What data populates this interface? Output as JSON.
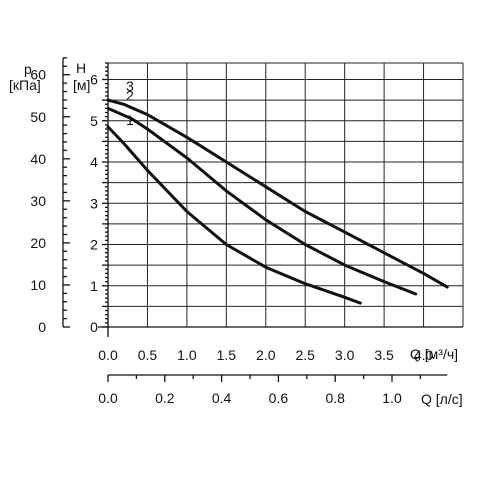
{
  "chart_data": {
    "type": "line",
    "title": "",
    "colors": {
      "curves": "#111111",
      "grid": "#222222",
      "background": "#ffffff"
    },
    "grid": true,
    "axes": {
      "x_flow_m3h": {
        "label": "Q [м³/ч]",
        "range": [
          0,
          4.5
        ],
        "ticks": [
          "0.0",
          "0.5",
          "1.0",
          "1.5",
          "2.0",
          "2.5",
          "3.0",
          "3.5",
          "4.0"
        ]
      },
      "x_flow_ls": {
        "label": "Q [л/с]",
        "ticks": [
          "0.0",
          "0.2",
          "0.4",
          "0.6",
          "0.8",
          "1.0"
        ]
      },
      "y_head_m": {
        "label_top": "H",
        "label_unit": "[м]",
        "range": [
          0,
          6.4
        ],
        "ticks": [
          "0",
          "1",
          "2",
          "3",
          "4",
          "5",
          "6"
        ]
      },
      "y_pressure_kpa": {
        "label_top": "p",
        "label_unit": "[кПа]",
        "ticks": [
          "0",
          "10",
          "20",
          "30",
          "40",
          "50",
          "60"
        ]
      }
    },
    "series": [
      {
        "name": "1",
        "x": [
          0.0,
          0.2,
          0.5,
          1.0,
          1.5,
          2.0,
          2.5,
          3.0,
          3.2
        ],
        "y": [
          4.85,
          4.45,
          3.8,
          2.8,
          2.0,
          1.45,
          1.05,
          0.72,
          0.58
        ]
      },
      {
        "name": "2",
        "x": [
          0.0,
          0.3,
          0.5,
          1.0,
          1.5,
          2.0,
          2.5,
          3.0,
          3.5,
          3.9
        ],
        "y": [
          5.3,
          5.05,
          4.8,
          4.1,
          3.3,
          2.6,
          2.0,
          1.5,
          1.1,
          0.8
        ]
      },
      {
        "name": "3",
        "x": [
          0.0,
          0.2,
          0.5,
          1.0,
          1.5,
          2.0,
          2.5,
          3.0,
          3.5,
          4.0,
          4.3
        ],
        "y": [
          5.5,
          5.4,
          5.15,
          4.6,
          4.0,
          3.4,
          2.8,
          2.3,
          1.8,
          1.3,
          0.97
        ]
      }
    ]
  }
}
